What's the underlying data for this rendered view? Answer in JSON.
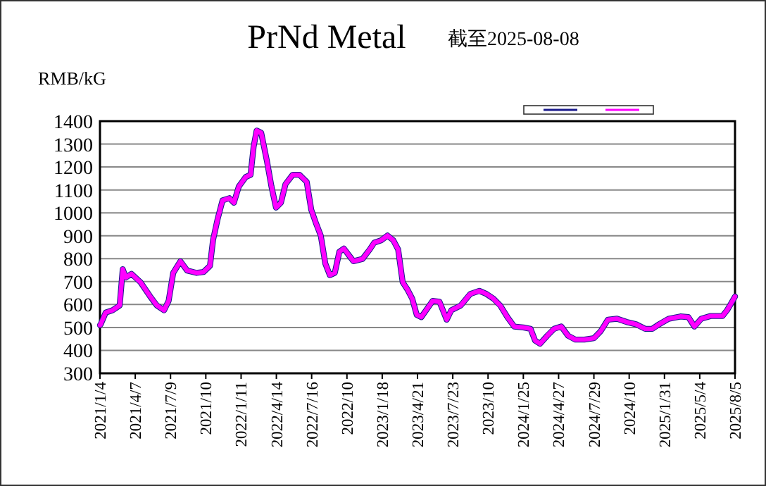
{
  "chart_data": {
    "type": "line",
    "title": "PrNd Metal",
    "subtitle": "截至2025-08-08",
    "ylabel": "RMB/kG",
    "x": [
      "2021-01-04",
      "2021-01-06",
      "2021-01-19",
      "2021-02-06",
      "2021-02-25",
      "2021-03-05",
      "2021-03-13",
      "2021-03-28",
      "2021-04-21",
      "2021-05-16",
      "2021-06-03",
      "2021-06-22",
      "2021-07-04",
      "2021-07-16",
      "2021-08-04",
      "2021-08-22",
      "2021-09-16",
      "2021-10-04",
      "2021-10-21",
      "2021-10-29",
      "2021-11-10",
      "2021-11-23",
      "2021-12-11",
      "2021-12-23",
      "2022-01-05",
      "2022-01-23",
      "2022-02-05",
      "2022-02-13",
      "2022-02-21",
      "2022-03-05",
      "2022-03-20",
      "2022-04-01",
      "2022-04-13",
      "2022-04-26",
      "2022-05-08",
      "2022-05-27",
      "2022-06-14",
      "2022-07-03",
      "2022-07-15",
      "2022-07-28",
      "2022-08-09",
      "2022-08-21",
      "2022-09-02",
      "2022-09-15",
      "2022-09-27",
      "2022-10-09",
      "2022-10-25",
      "2022-11-03",
      "2022-11-27",
      "2022-12-16",
      "2022-12-28",
      "2023-01-16",
      "2023-02-01",
      "2023-02-16",
      "2023-03-01",
      "2023-03-13",
      "2023-03-25",
      "2023-04-07",
      "2023-04-19",
      "2023-05-01",
      "2023-05-31",
      "2023-06-18",
      "2023-07-07",
      "2023-07-19",
      "2023-08-13",
      "2023-09-07",
      "2023-10-01",
      "2023-10-20",
      "2023-11-07",
      "2023-11-25",
      "2023-12-14",
      "2024-01-01",
      "2024-01-25",
      "2024-02-13",
      "2024-02-25",
      "2024-03-09",
      "2024-03-28",
      "2024-04-15",
      "2024-05-04",
      "2024-05-22",
      "2024-06-10",
      "2024-07-04",
      "2024-07-29",
      "2024-08-16",
      "2024-09-04",
      "2024-09-28",
      "2024-10-23",
      "2024-11-17",
      "2024-12-11",
      "2024-12-30",
      "2025-01-17",
      "2025-02-11",
      "2025-03-14",
      "2025-04-04",
      "2025-04-20",
      "2025-05-08",
      "2025-06-02",
      "2025-07-03",
      "2025-07-15",
      "2025-07-24",
      "2025-08-05"
    ],
    "series": [
      {
        "color": "#1a1a8c",
        "values": [
          510,
          514,
          565,
          575,
          596,
          754,
          718,
          734,
          697,
          636,
          596,
          575,
          616,
          738,
          789,
          748,
          738,
          742,
          769,
          881,
          972,
          1054,
          1064,
          1044,
          1115,
          1156,
          1166,
          1288,
          1359,
          1349,
          1227,
          1115,
          1023,
          1044,
          1125,
          1166,
          1166,
          1135,
          1013,
          952,
          901,
          779,
          728,
          738,
          830,
          844,
          809,
          789,
          799,
          840,
          870,
          881,
          901,
          881,
          840,
          697,
          667,
          626,
          555,
          545,
          616,
          612,
          534,
          575,
          596,
          646,
          660,
          646,
          626,
          596,
          545,
          504,
          500,
          494,
          443,
          429,
          464,
          494,
          504,
          464,
          447,
          447,
          453,
          484,
          534,
          538,
          524,
          514,
          494,
          494,
          514,
          538,
          548,
          545,
          504,
          538,
          550,
          550,
          575,
          600,
          635
        ]
      },
      {
        "color": "#ff00ff",
        "values": [
          510,
          514,
          565,
          575,
          596,
          754,
          718,
          734,
          697,
          636,
          596,
          575,
          616,
          738,
          789,
          748,
          738,
          742,
          769,
          881,
          972,
          1054,
          1064,
          1044,
          1115,
          1156,
          1166,
          1288,
          1359,
          1349,
          1227,
          1115,
          1023,
          1044,
          1125,
          1166,
          1166,
          1135,
          1013,
          952,
          901,
          779,
          728,
          738,
          830,
          844,
          809,
          789,
          799,
          840,
          870,
          881,
          901,
          881,
          840,
          697,
          667,
          626,
          555,
          545,
          616,
          612,
          534,
          575,
          596,
          646,
          660,
          646,
          626,
          596,
          545,
          504,
          500,
          494,
          443,
          429,
          464,
          494,
          504,
          464,
          447,
          447,
          453,
          484,
          534,
          538,
          524,
          514,
          494,
          494,
          514,
          538,
          548,
          545,
          504,
          538,
          550,
          550,
          575,
          600,
          635
        ]
      }
    ],
    "xlim": [
      "2021-01-04",
      "2025-08-05"
    ],
    "xticks": [
      {
        "value": "2021-01-04",
        "label": "2021/1/4"
      },
      {
        "value": "2021-04-07",
        "label": "2021/4/7"
      },
      {
        "value": "2021-07-09",
        "label": "2021/7/9"
      },
      {
        "value": "2021-10-10",
        "label": "2021/10"
      },
      {
        "value": "2022-01-11",
        "label": "2022/1/11"
      },
      {
        "value": "2022-04-14",
        "label": "2022/4/14"
      },
      {
        "value": "2022-07-16",
        "label": "2022/7/16"
      },
      {
        "value": "2022-10-17",
        "label": "2022/10"
      },
      {
        "value": "2023-01-18",
        "label": "2023/1/18"
      },
      {
        "value": "2023-04-21",
        "label": "2023/4/21"
      },
      {
        "value": "2023-07-23",
        "label": "2023/7/23"
      },
      {
        "value": "2023-10-24",
        "label": "2023/10"
      },
      {
        "value": "2024-01-25",
        "label": "2024/1/25"
      },
      {
        "value": "2024-04-27",
        "label": "2024/4/27"
      },
      {
        "value": "2024-07-29",
        "label": "2024/7/29"
      },
      {
        "value": "2024-10-30",
        "label": "2024/10"
      },
      {
        "value": "2025-01-31",
        "label": "2025/1/31"
      },
      {
        "value": "2025-05-04",
        "label": "2025/5/4"
      },
      {
        "value": "2025-08-05",
        "label": "2025/8/5"
      }
    ],
    "ylim": [
      300,
      1400
    ],
    "yticks": [
      300,
      400,
      500,
      600,
      700,
      800,
      900,
      1000,
      1100,
      1200,
      1300,
      1400
    ],
    "grid": "y",
    "marker": "none",
    "line_style": "solid"
  }
}
